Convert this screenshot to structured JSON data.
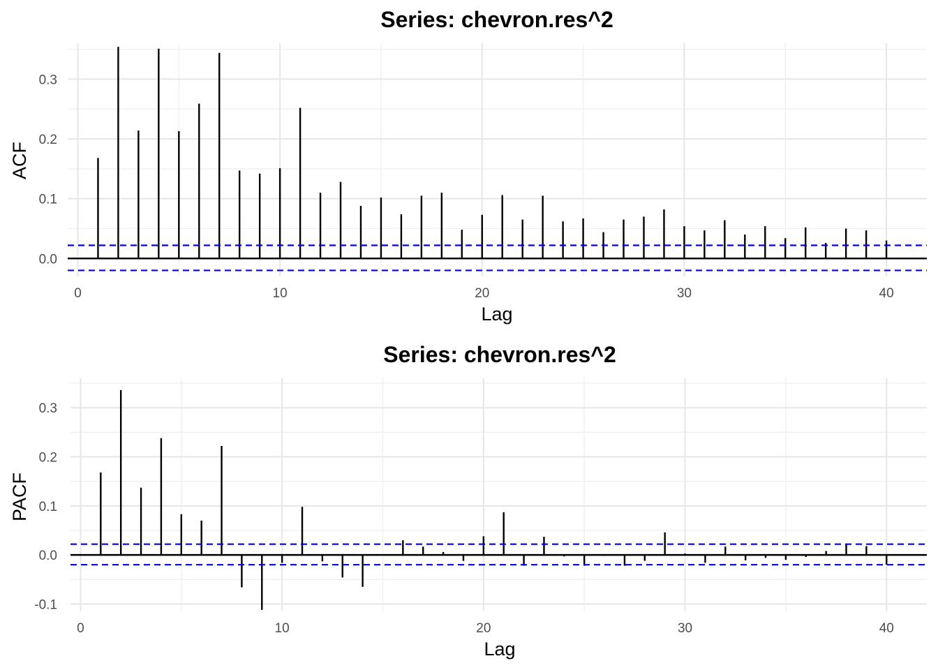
{
  "colors": {
    "bar": "#000000",
    "ci": "#0000ee",
    "grid": "#e6e6e6",
    "zero": "#000000"
  },
  "chart_data": [
    {
      "type": "bar",
      "title": "Series: chevron.res^2",
      "xlabel": "Lag",
      "ylabel": "ACF",
      "xlim": [
        -0.5,
        42
      ],
      "ylim": [
        -0.03,
        0.36
      ],
      "xticks": [
        0,
        10,
        20,
        30,
        40
      ],
      "xtick_labels": [
        "0",
        "10",
        "20",
        "30",
        "40"
      ],
      "yticks": [
        0.0,
        0.1,
        0.2,
        0.3
      ],
      "ytick_labels": [
        "0.0",
        "0.1",
        "0.2",
        "0.3"
      ],
      "yminor": [
        0.05,
        0.15,
        0.25,
        0.35
      ],
      "ci": [
        0.022,
        -0.02
      ],
      "x": [
        1,
        2,
        3,
        4,
        5,
        6,
        7,
        8,
        9,
        10,
        11,
        12,
        13,
        14,
        15,
        16,
        17,
        18,
        19,
        20,
        21,
        22,
        23,
        24,
        25,
        26,
        27,
        28,
        29,
        30,
        31,
        32,
        33,
        34,
        35,
        36,
        37,
        38,
        39,
        40
      ],
      "values": [
        0.168,
        0.354,
        0.214,
        0.351,
        0.213,
        0.259,
        0.344,
        0.147,
        0.142,
        0.151,
        0.252,
        0.11,
        0.128,
        0.088,
        0.102,
        0.074,
        0.105,
        0.11,
        0.048,
        0.073,
        0.106,
        0.065,
        0.105,
        0.062,
        0.067,
        0.044,
        0.065,
        0.07,
        0.082,
        0.054,
        0.047,
        0.064,
        0.04,
        0.054,
        0.034,
        0.052,
        0.026,
        0.05,
        0.047,
        0.03
      ],
      "grid": true
    },
    {
      "type": "bar",
      "title": "Series: chevron.res^2",
      "xlabel": "Lag",
      "ylabel": "PACF",
      "xlim": [
        -0.5,
        42
      ],
      "ylim": [
        -0.115,
        0.36
      ],
      "xticks": [
        0,
        10,
        20,
        30,
        40
      ],
      "xtick_labels": [
        "0",
        "10",
        "20",
        "30",
        "40"
      ],
      "yticks": [
        -0.1,
        0.0,
        0.1,
        0.2,
        0.3
      ],
      "ytick_labels": [
        "-0.1",
        "0.0",
        "0.1",
        "0.2",
        "0.3"
      ],
      "yminor": [
        -0.05,
        0.05,
        0.15,
        0.25,
        0.35
      ],
      "ci": [
        0.022,
        -0.02
      ],
      "x": [
        1,
        2,
        3,
        4,
        5,
        6,
        7,
        8,
        9,
        10,
        11,
        12,
        13,
        14,
        15,
        16,
        17,
        18,
        19,
        20,
        21,
        22,
        23,
        24,
        25,
        26,
        27,
        28,
        29,
        30,
        31,
        32,
        33,
        34,
        35,
        36,
        37,
        38,
        39,
        40
      ],
      "values": [
        0.168,
        0.336,
        0.137,
        0.238,
        0.083,
        0.07,
        0.222,
        -0.066,
        -0.112,
        -0.016,
        0.098,
        -0.013,
        -0.046,
        -0.065,
        0.0,
        0.03,
        0.017,
        0.006,
        -0.012,
        0.038,
        0.087,
        -0.022,
        0.037,
        -0.003,
        -0.022,
        -0.002,
        -0.022,
        -0.012,
        0.046,
        0.003,
        -0.016,
        0.017,
        -0.011,
        -0.006,
        -0.01,
        -0.004,
        0.008,
        0.023,
        0.018,
        -0.02
      ],
      "grid": true
    }
  ]
}
